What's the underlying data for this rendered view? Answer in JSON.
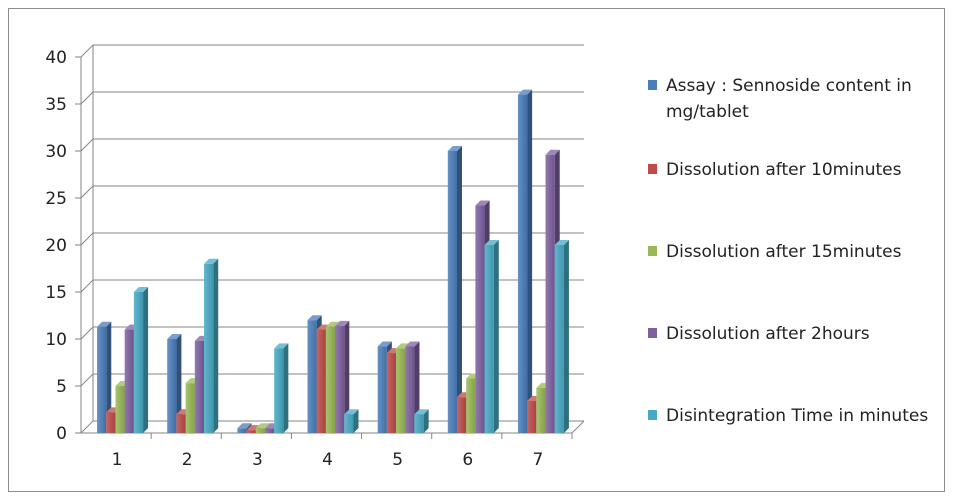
{
  "chart_data": {
    "type": "bar",
    "categories": [
      "1",
      "2",
      "3",
      "4",
      "5",
      "6",
      "7"
    ],
    "ylim": [
      0,
      40
    ],
    "yticks": [
      0,
      5,
      10,
      15,
      20,
      25,
      30,
      35,
      40
    ],
    "grid": true,
    "legend_position": "right",
    "series": [
      {
        "name": "Assay : Sennoside content in mg/tablet",
        "color": "#4a7ebb",
        "values": [
          11.3,
          10.0,
          0.5,
          12.0,
          9.2,
          30.0,
          36.0
        ]
      },
      {
        "name": "Dissolution after 10minutes",
        "color": "#be4b48",
        "values": [
          2.2,
          2.0,
          0.3,
          11.0,
          8.5,
          3.8,
          3.4
        ]
      },
      {
        "name": "Dissolution after 15minutes",
        "color": "#98b954",
        "values": [
          5.0,
          5.3,
          0.5,
          11.3,
          9.0,
          5.8,
          4.8
        ]
      },
      {
        "name": "Dissolution after 2hours",
        "color": "#7d60a0",
        "values": [
          11.0,
          9.8,
          0.5,
          11.4,
          9.2,
          24.2,
          29.6
        ]
      },
      {
        "name": "Disintegration Time in minutes",
        "color": "#46aac5",
        "values": [
          15.0,
          18.0,
          9.0,
          2.0,
          2.0,
          20.0,
          20.0
        ]
      }
    ]
  }
}
